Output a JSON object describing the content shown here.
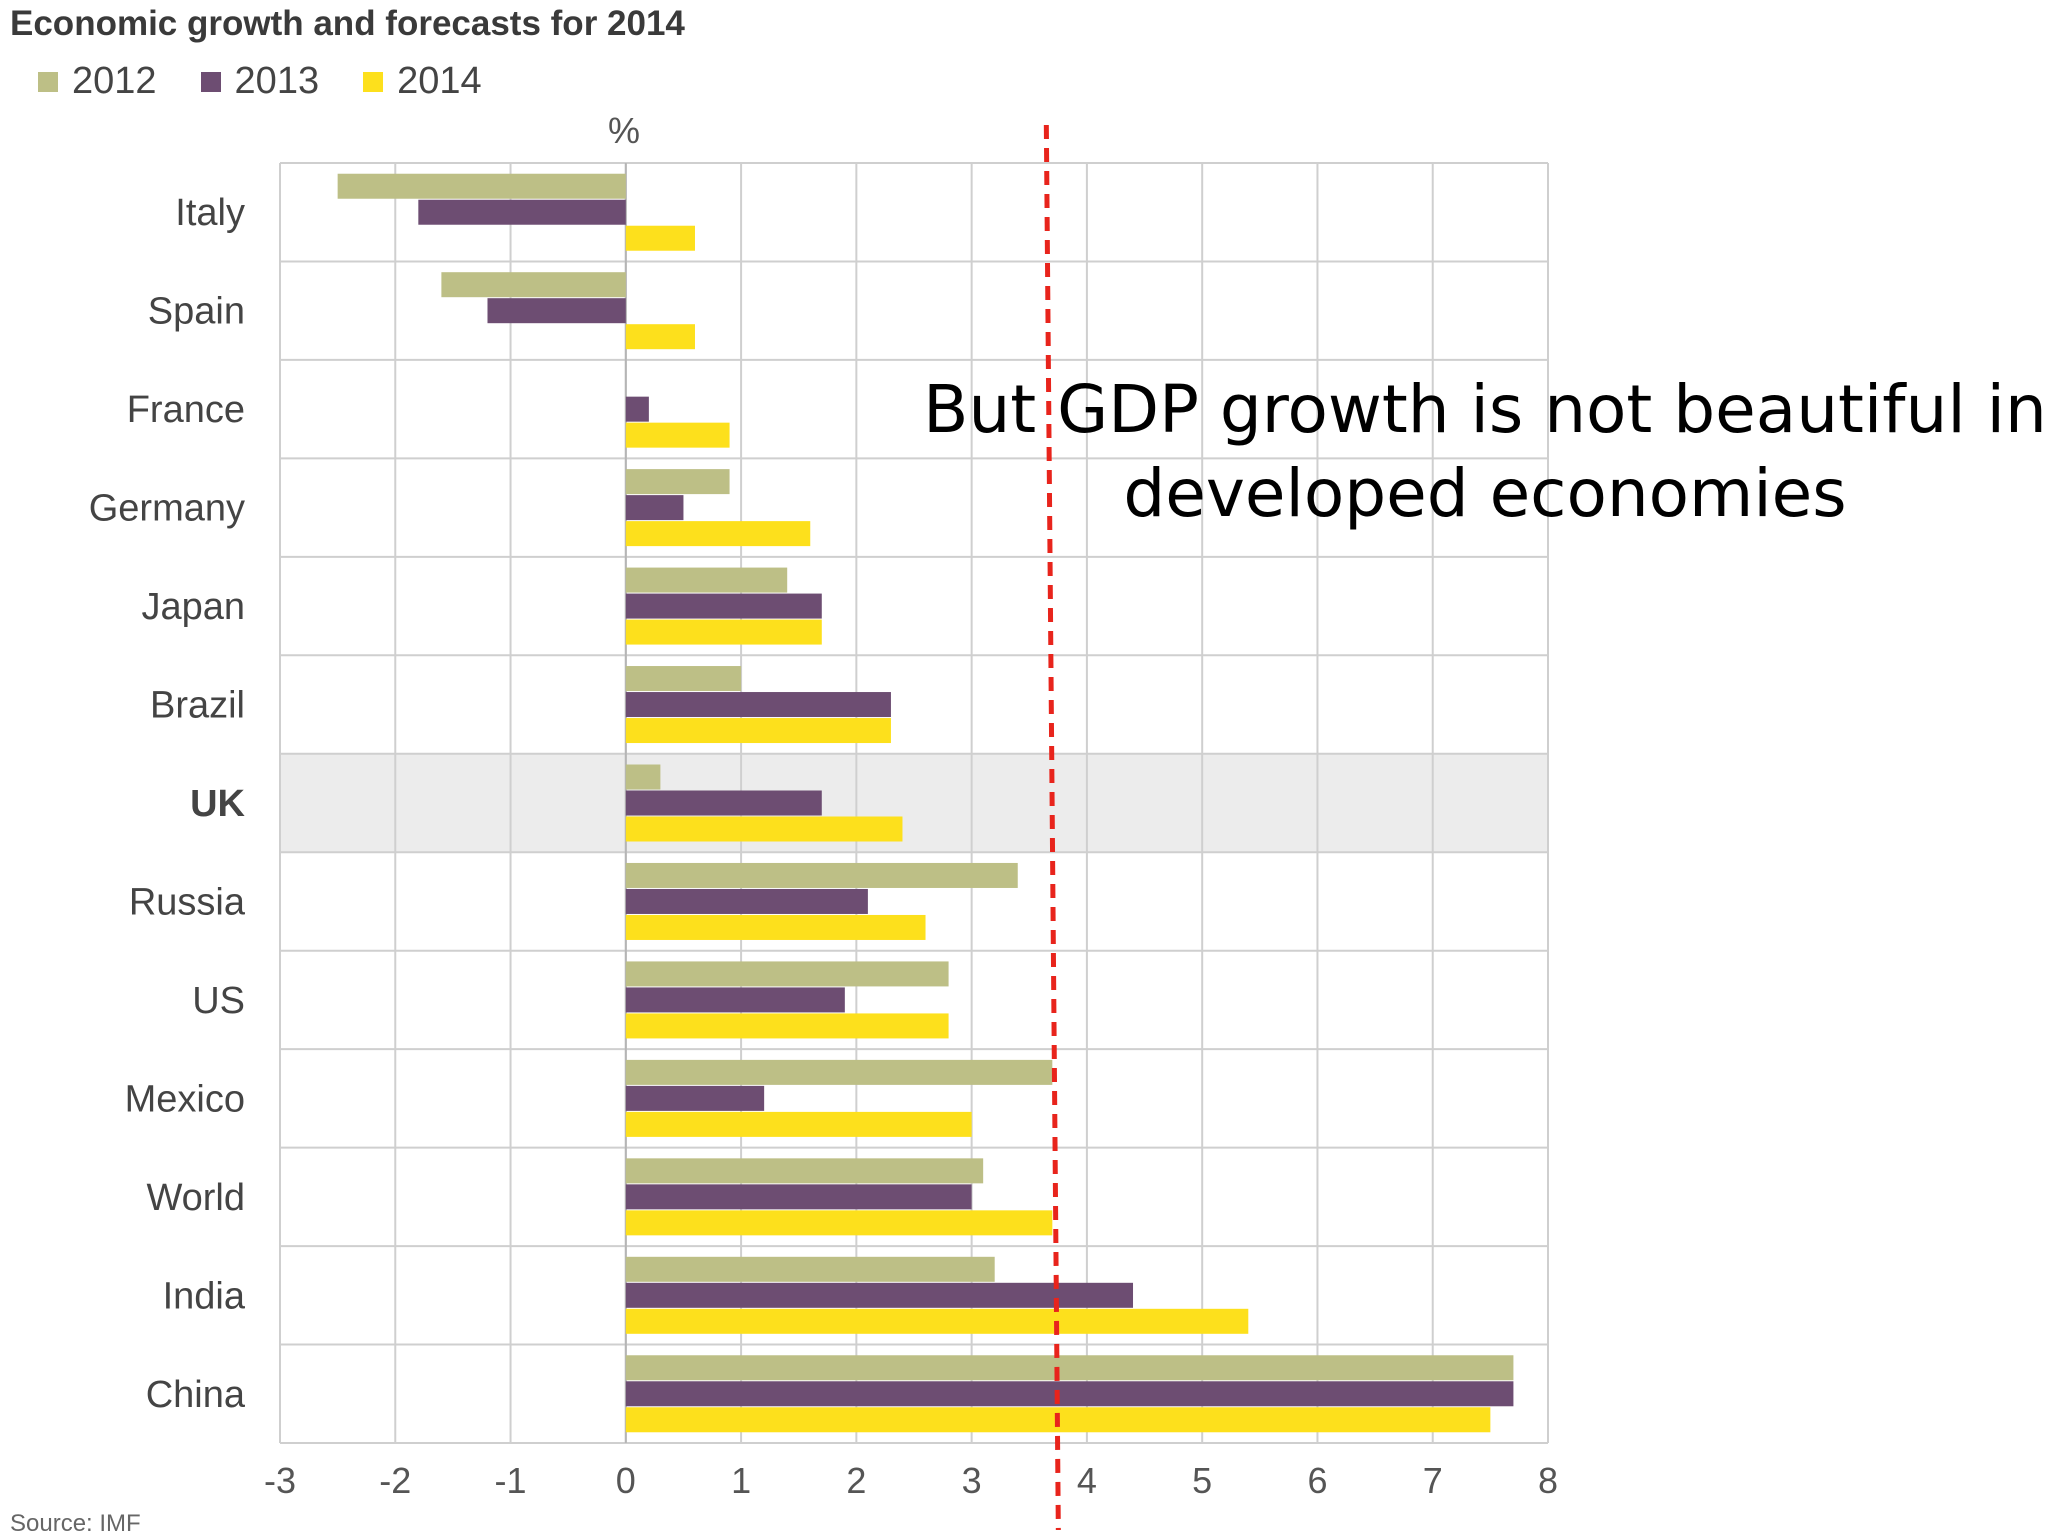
{
  "chart_data": {
    "type": "bar",
    "orientation": "horizontal",
    "title": "Economic growth and forecasts for 2014",
    "unit": "%",
    "source": "Source: IMF",
    "annotation": "But GDP growth is not beautiful in developed economies",
    "categories": [
      "Italy",
      "Spain",
      "France",
      "Germany",
      "Japan",
      "Brazil",
      "UK",
      "Russia",
      "US",
      "Mexico",
      "World",
      "India",
      "China"
    ],
    "highlight_category": "UK",
    "series": [
      {
        "name": "2012",
        "color": "#bdbf86",
        "values": [
          -2.5,
          -1.6,
          0.0,
          0.9,
          1.4,
          1.0,
          0.3,
          3.4,
          2.8,
          3.7,
          3.1,
          3.2,
          7.7
        ]
      },
      {
        "name": "2013",
        "color": "#6d4d72",
        "values": [
          -1.8,
          -1.2,
          0.2,
          0.5,
          1.7,
          2.3,
          1.7,
          2.1,
          1.9,
          1.2,
          3.0,
          4.4,
          7.7
        ]
      },
      {
        "name": "2014",
        "color": "#fde01c",
        "values": [
          0.6,
          0.6,
          0.9,
          1.6,
          1.7,
          2.3,
          2.4,
          2.6,
          2.8,
          3.0,
          3.7,
          5.4,
          7.5
        ]
      }
    ],
    "xlim": [
      -3,
      8
    ],
    "xticks": [
      "-3",
      "-2",
      "-1",
      "0",
      "1",
      "2",
      "3",
      "4",
      "5",
      "6",
      "7",
      "8"
    ],
    "reference_line": {
      "value": 3.7,
      "color": "#e8241c",
      "style": "dashed"
    },
    "grid": true,
    "legend_position": "top-left"
  }
}
